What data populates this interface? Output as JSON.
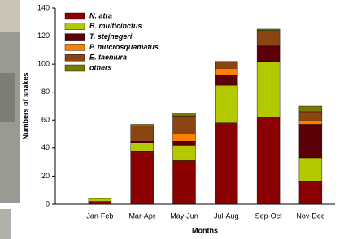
{
  "chart_data": {
    "type": "stacked_bar",
    "y_label": "Numbers of snakes",
    "x_label": "Months",
    "categories": [
      "Jan-Feb",
      "Mar-Apr",
      "May-Jun",
      "Jul-Aug",
      "Sep-Oct",
      "Nov-Dec"
    ],
    "series": [
      {
        "name": "N. atra",
        "color": "#8b0000",
        "values": [
          2,
          38,
          31,
          58,
          62,
          16
        ]
      },
      {
        "name": "B. multicinctus",
        "color": "#b4c800",
        "values": [
          2,
          6,
          11,
          27,
          40,
          17
        ]
      },
      {
        "name": "T. stejnegeri",
        "color": "#5c0008",
        "values": [
          0,
          1,
          3,
          7,
          11,
          24
        ]
      },
      {
        "name": "P. mucrosquamatus",
        "color": "#ff7f00",
        "values": [
          0,
          0,
          5,
          5,
          0,
          3
        ]
      },
      {
        "name": "E. taeniura",
        "color": "#8b4513",
        "values": [
          0,
          11,
          13,
          5,
          11,
          6
        ]
      },
      {
        "name": "others",
        "color": "#7a7a00",
        "values": [
          0,
          1,
          2,
          0,
          1,
          4
        ]
      }
    ],
    "ylim": [
      0,
      140
    ],
    "yticks": [
      0,
      20,
      40,
      60,
      80,
      100,
      120,
      140
    ],
    "legend": "top-left"
  }
}
